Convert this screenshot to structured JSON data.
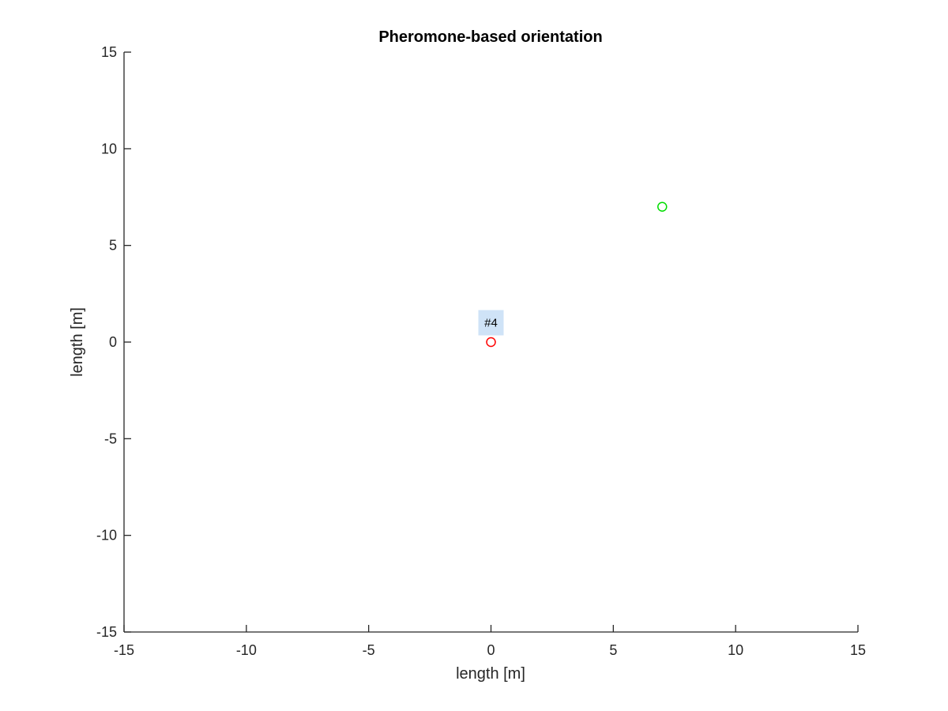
{
  "chart_data": {
    "type": "scatter",
    "title": "Pheromone-based orientation",
    "xlabel": "length [m]",
    "ylabel": "length [m]",
    "xlim": [
      -15,
      15
    ],
    "ylim": [
      -15,
      15
    ],
    "xticks": [
      -15,
      -10,
      -5,
      0,
      5,
      10,
      15
    ],
    "yticks": [
      -15,
      -10,
      -5,
      0,
      5,
      10,
      15
    ],
    "grid": false,
    "series": [
      {
        "marker": "circle",
        "color": "#ff0000",
        "points": [
          {
            "x": 0,
            "y": 0
          }
        ]
      },
      {
        "marker": "circle",
        "color": "#00dd00",
        "points": [
          {
            "x": 7,
            "y": 7
          }
        ]
      }
    ],
    "annotations": [
      {
        "text": "#4",
        "x": 0,
        "y": 1,
        "background": "#cfe3f7"
      }
    ]
  }
}
